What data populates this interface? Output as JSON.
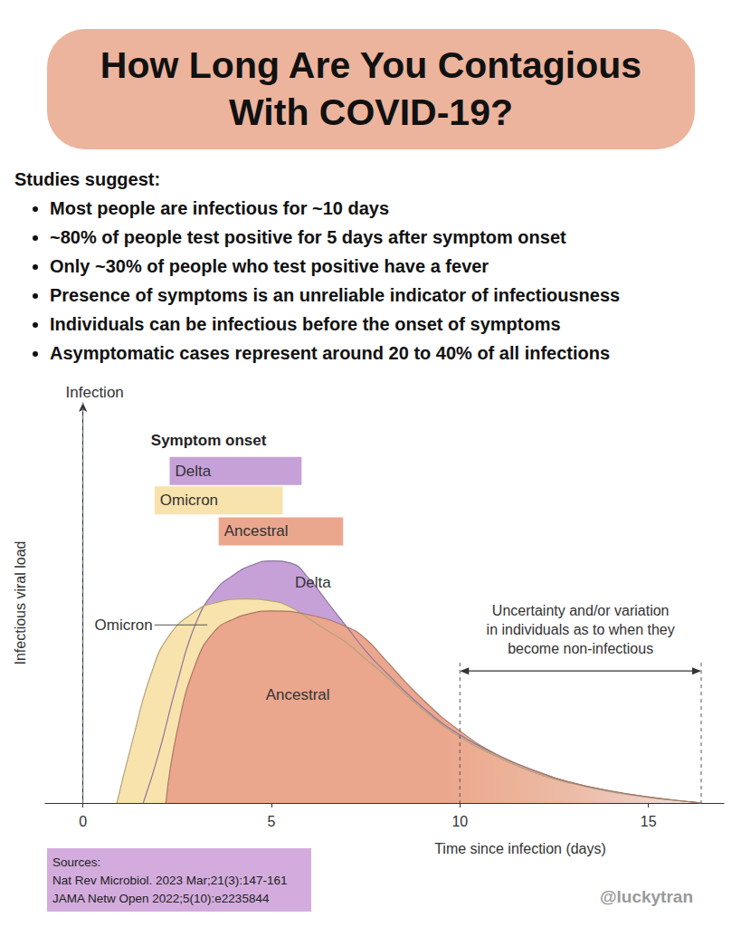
{
  "title": "How Long Are You Contagious With COVID-19?",
  "intro": "Studies suggest:",
  "bullets": [
    "Most people are infectious for ~10 days",
    "~80% of people test positive for 5 days after symptom onset",
    "Only ~30% of people who test positive have a fever",
    "Presence of symptoms is an unreliable indicator of infectiousness",
    "Individuals can be infectious before the onset of symptoms",
    "Asymptomatic cases represent around 20 to 40% of all infections"
  ],
  "chart_data": {
    "type": "area",
    "x_label": "Time since infection (days)",
    "y_label": "Infectious viral load",
    "xlim": [
      -1,
      17
    ],
    "xticks": [
      0,
      5,
      10,
      15
    ],
    "ylim": [
      0,
      100
    ],
    "yticks": [],
    "tick_labels": "x",
    "grid": false,
    "series": [
      {
        "name": "Delta",
        "color": "#c6a1d8",
        "x": [
          1.6,
          2,
          2.5,
          3,
          3.5,
          4,
          4.5,
          5,
          5.5,
          6,
          6.5,
          7,
          7.5,
          8,
          9,
          10,
          11,
          12,
          13,
          14,
          15,
          16,
          16.4
        ],
        "values": [
          0,
          12,
          30,
          45,
          53,
          57,
          59.5,
          60.5,
          60,
          56,
          50,
          44,
          38,
          33,
          24,
          17,
          12,
          8,
          5,
          3,
          1.5,
          0.4,
          0
        ]
      },
      {
        "name": "Omicron",
        "color": "#f8e3ad",
        "x": [
          0.9,
          1.3,
          1.8,
          2.3,
          3,
          3.5,
          4.3,
          5,
          5.5,
          6,
          6.5,
          7,
          7.5,
          8,
          9,
          10,
          11,
          12,
          13,
          14,
          15,
          16,
          16.4
        ],
        "values": [
          0,
          15,
          32,
          42,
          48,
          50,
          51,
          50.5,
          49,
          46,
          43,
          40,
          36,
          32,
          23.5,
          16.5,
          11.5,
          7.5,
          4.8,
          2.8,
          1.4,
          0.4,
          0
        ]
      },
      {
        "name": "Ancestral",
        "color": "#eba68e",
        "x": [
          2.2,
          2.5,
          3,
          3.5,
          4,
          4.5,
          5,
          6,
          7,
          7.5,
          8,
          9,
          10,
          11,
          12,
          13,
          14,
          15,
          16,
          16.4
        ],
        "values": [
          0,
          18,
          35,
          43,
          46,
          47.5,
          48,
          47,
          44,
          41,
          36,
          26,
          18,
          12,
          8,
          5,
          3,
          1.5,
          0.4,
          0
        ]
      }
    ],
    "symptom_onset": {
      "title": "Symptom onset",
      "bars": [
        {
          "name": "Delta",
          "start": 2.3,
          "end": 5.8
        },
        {
          "name": "Omicron",
          "start": 1.9,
          "end": 5.3
        },
        {
          "name": "Ancestral",
          "start": 3.6,
          "end": 6.9
        }
      ]
    },
    "event_line": {
      "label": "Infection",
      "x": 0
    },
    "annotation": {
      "text": "Uncertainty and/or variation\nin individuals as to when they\nbecome non-infectious",
      "x_start": 10,
      "x_end": 16.4
    }
  },
  "sources": {
    "title": "Sources:",
    "items": [
      "Nat Rev Microbiol. 2023 Mar;21(3):147-161",
      "JAMA Netw Open 2022;5(10):e2235844"
    ]
  },
  "handle": "@luckytran"
}
